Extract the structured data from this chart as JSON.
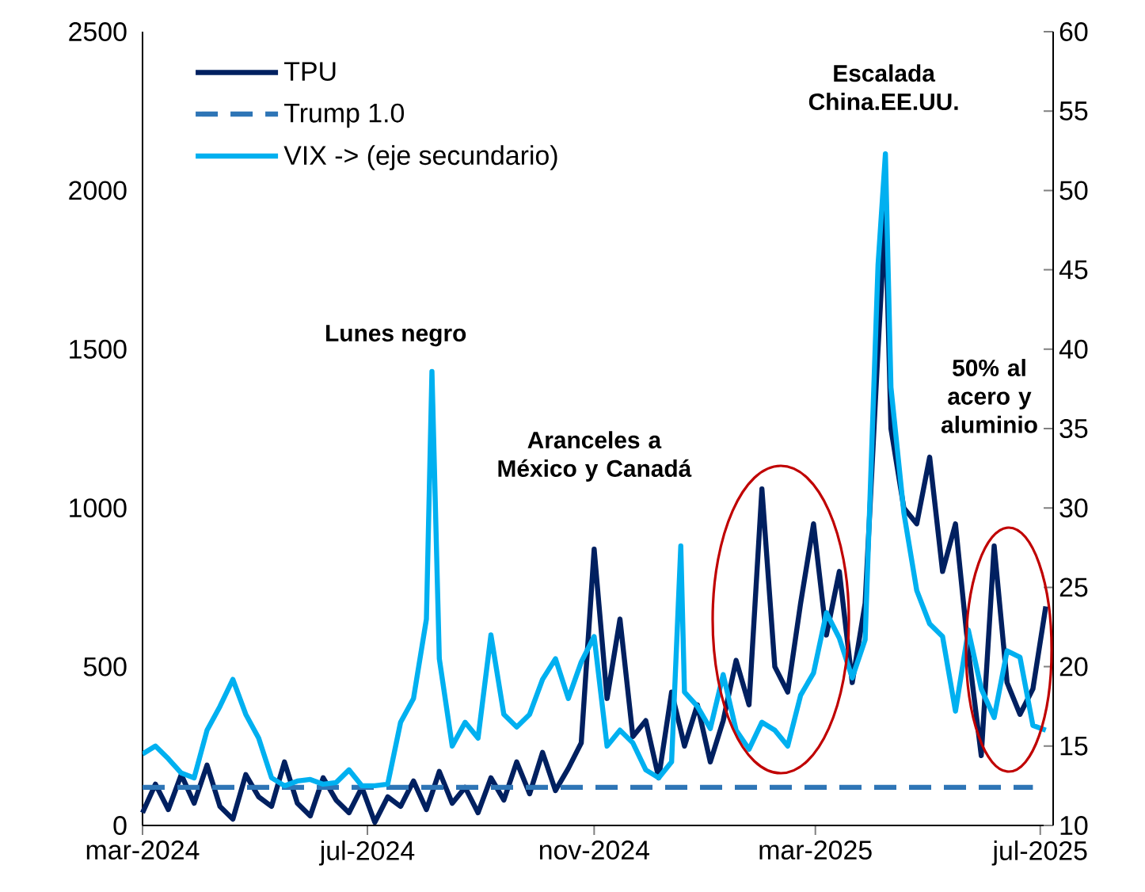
{
  "chart_data": {
    "type": "line",
    "x": [
      "2024-03-01",
      "2024-03-08",
      "2024-03-15",
      "2024-03-22",
      "2024-03-29",
      "2024-04-05",
      "2024-04-12",
      "2024-04-19",
      "2024-04-26",
      "2024-05-03",
      "2024-05-10",
      "2024-05-17",
      "2024-05-24",
      "2024-05-31",
      "2024-06-07",
      "2024-06-14",
      "2024-06-21",
      "2024-06-28",
      "2024-07-05",
      "2024-07-12",
      "2024-07-19",
      "2024-07-26",
      "2024-08-02",
      "2024-08-05",
      "2024-08-09",
      "2024-08-16",
      "2024-08-23",
      "2024-08-30",
      "2024-09-06",
      "2024-09-13",
      "2024-09-20",
      "2024-09-27",
      "2024-10-04",
      "2024-10-11",
      "2024-10-18",
      "2024-10-25",
      "2024-11-01",
      "2024-11-08",
      "2024-11-15",
      "2024-11-22",
      "2024-11-29",
      "2024-12-06",
      "2024-12-13",
      "2024-12-18",
      "2024-12-20",
      "2024-12-27",
      "2025-01-03",
      "2025-01-10",
      "2025-01-17",
      "2025-01-24",
      "2025-01-31",
      "2025-02-07",
      "2025-02-14",
      "2025-02-21",
      "2025-02-28",
      "2025-03-07",
      "2025-03-14",
      "2025-03-21",
      "2025-03-28",
      "2025-04-04",
      "2025-04-08",
      "2025-04-11",
      "2025-04-18",
      "2025-04-25",
      "2025-05-02",
      "2025-05-09",
      "2025-05-16",
      "2025-05-23",
      "2025-05-30",
      "2025-06-06",
      "2025-06-13",
      "2025-06-20",
      "2025-06-27",
      "2025-07-04"
    ],
    "series": [
      {
        "name": "TPU",
        "color": "#002060",
        "values": [
          40,
          130,
          50,
          160,
          70,
          190,
          60,
          20,
          160,
          90,
          60,
          200,
          70,
          30,
          150,
          80,
          40,
          120,
          10,
          90,
          60,
          140,
          50,
          100,
          170,
          70,
          120,
          40,
          150,
          80,
          200,
          100,
          230,
          110,
          180,
          260,
          870,
          400,
          650,
          280,
          330,
          150,
          420,
          300,
          250,
          380,
          200,
          330,
          520,
          380,
          1060,
          500,
          420,
          700,
          950,
          600,
          800,
          450,
          700,
          1500,
          1930,
          1250,
          1000,
          950,
          1160,
          800,
          950,
          550,
          220,
          880,
          450,
          350,
          430,
          690
        ]
      },
      {
        "name": "Trump 1.0",
        "color": "#2E75B6",
        "line_style": "dashed",
        "x": [
          "2024-03-01",
          "2025-06-27"
        ],
        "values": [
          120,
          120
        ]
      },
      {
        "name": "VIX -> (eje secundario)",
        "color": "#00B0F0",
        "axis": "y2",
        "values": [
          14.5,
          15,
          14.2,
          13.3,
          13,
          16,
          17.5,
          19.2,
          17,
          15.5,
          13,
          12.5,
          12.8,
          12.9,
          12.6,
          12.7,
          13.5,
          12.5,
          12.5,
          12.6,
          16.5,
          18,
          23,
          38.6,
          20.5,
          15,
          16.5,
          15.5,
          22,
          17,
          16.2,
          17,
          19.2,
          20.5,
          18,
          20.3,
          21.9,
          15,
          16,
          15.2,
          13.5,
          13,
          14,
          27.6,
          18.4,
          17.5,
          16.1,
          19.5,
          16,
          14.8,
          16.5,
          16,
          15,
          18.2,
          19.6,
          23.4,
          21.8,
          19.3,
          21.7,
          45.3,
          52.3,
          37.6,
          29.7,
          24.8,
          22.7,
          21.9,
          17.2,
          22.3,
          18.6,
          16.8,
          21,
          20.6,
          16.3,
          16
        ]
      }
    ],
    "xlim": [
      "2024-03-01",
      "2025-07-08"
    ],
    "xticks": [
      {
        "value": "2024-03-01",
        "label": "mar-2024"
      },
      {
        "value": "2024-07-01",
        "label": "jul-2024"
      },
      {
        "value": "2024-11-01",
        "label": "nov-2024"
      },
      {
        "value": "2025-03-01",
        "label": "mar-2025"
      },
      {
        "value": "2025-07-01",
        "label": "jul-2025"
      }
    ],
    "ylim": [
      0,
      2500
    ],
    "yticks": [
      0,
      500,
      1000,
      1500,
      2000,
      2500
    ],
    "y2lim": [
      10,
      60
    ],
    "y2ticks": [
      10,
      15,
      20,
      25,
      30,
      35,
      40,
      45,
      50,
      55,
      60
    ],
    "legend": "top left",
    "annotations": [
      "Lunes negro",
      "Aranceles a México y Canadá",
      "Escalada China.EE.UU.",
      "50% al acero y aluminio"
    ]
  }
}
